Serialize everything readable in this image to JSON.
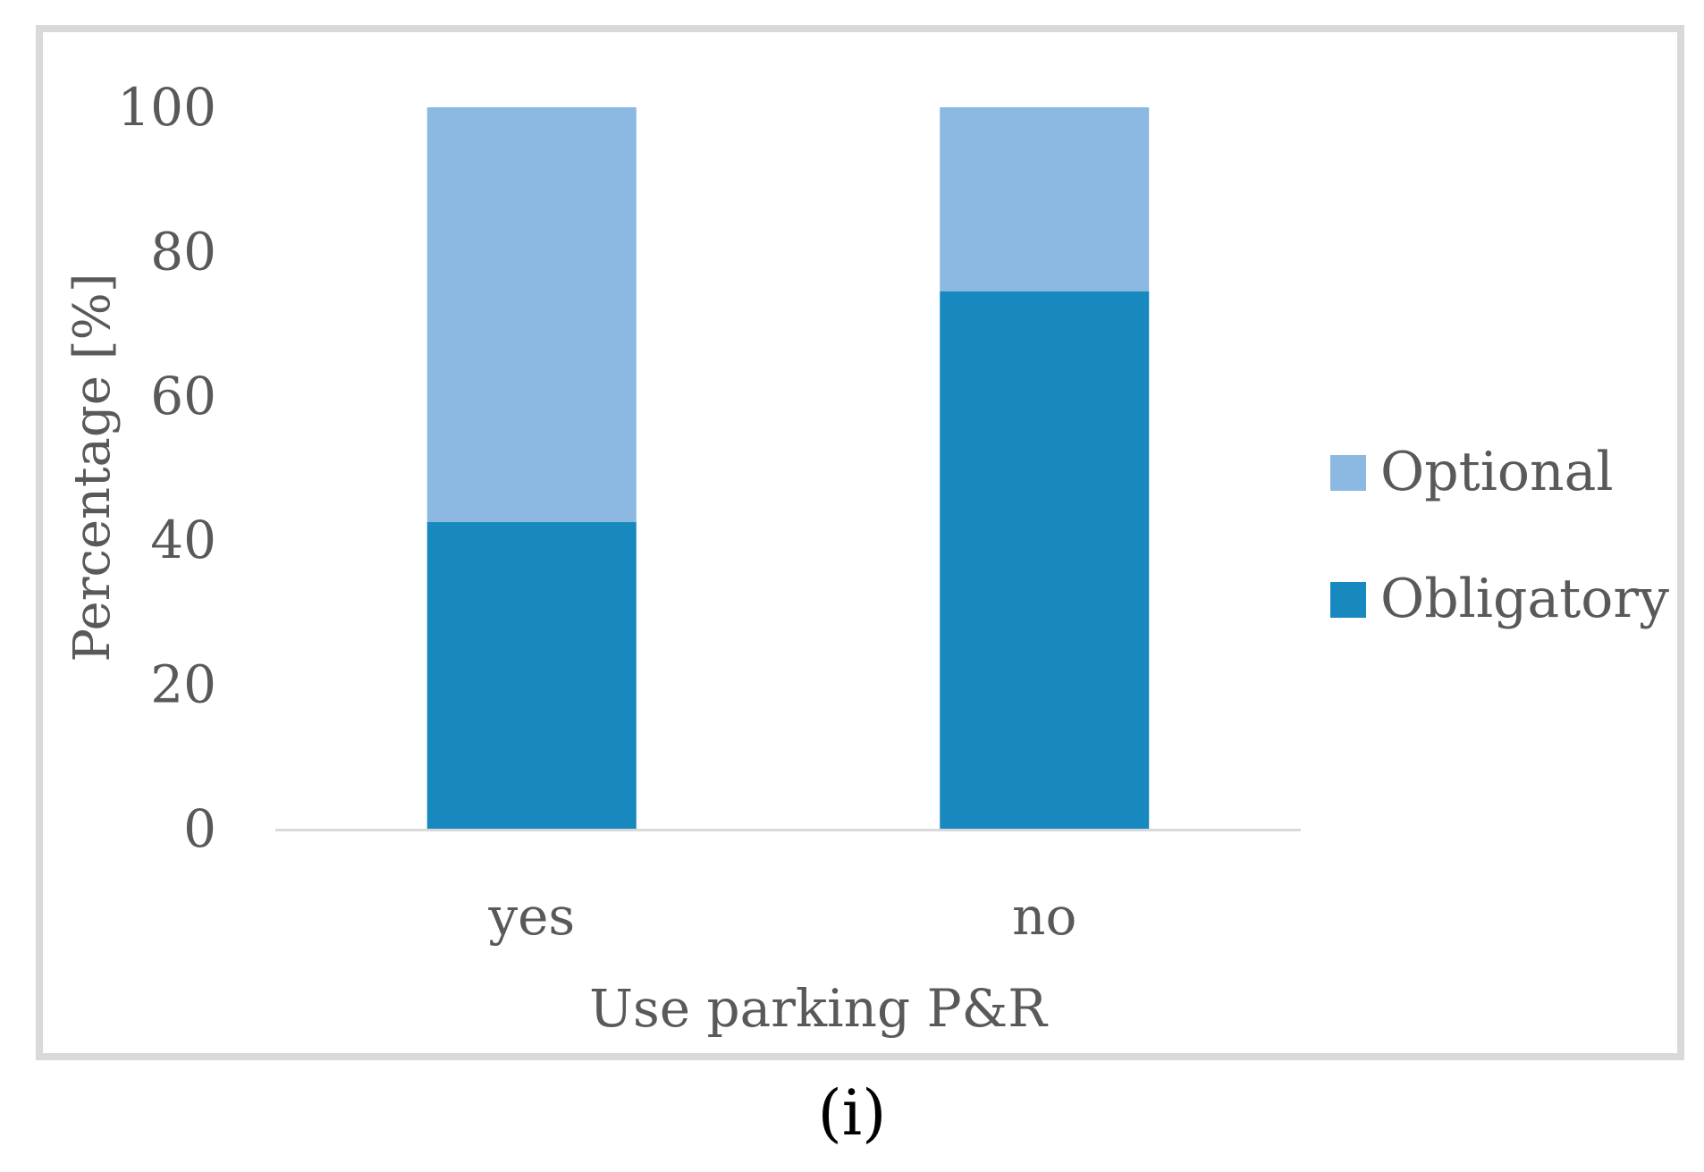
{
  "chart_data": {
    "type": "bar",
    "stacked": true,
    "categories": [
      "yes",
      "no"
    ],
    "series": [
      {
        "name": "Obligatory",
        "values": [
          42.5,
          74.5
        ],
        "color": "#1789be"
      },
      {
        "name": "Optional",
        "values": [
          57.5,
          25.5
        ],
        "color": "#8bb9e1"
      }
    ],
    "xlabel": "Use parking P&R",
    "ylabel": "Percentage [%]",
    "ylim": [
      0,
      100
    ],
    "yticks": [
      0,
      20,
      40,
      60,
      80,
      100
    ],
    "grid": false,
    "legend_position": "right",
    "legend_order": [
      "Optional",
      "Obligatory"
    ]
  },
  "panel_label": "(i)"
}
